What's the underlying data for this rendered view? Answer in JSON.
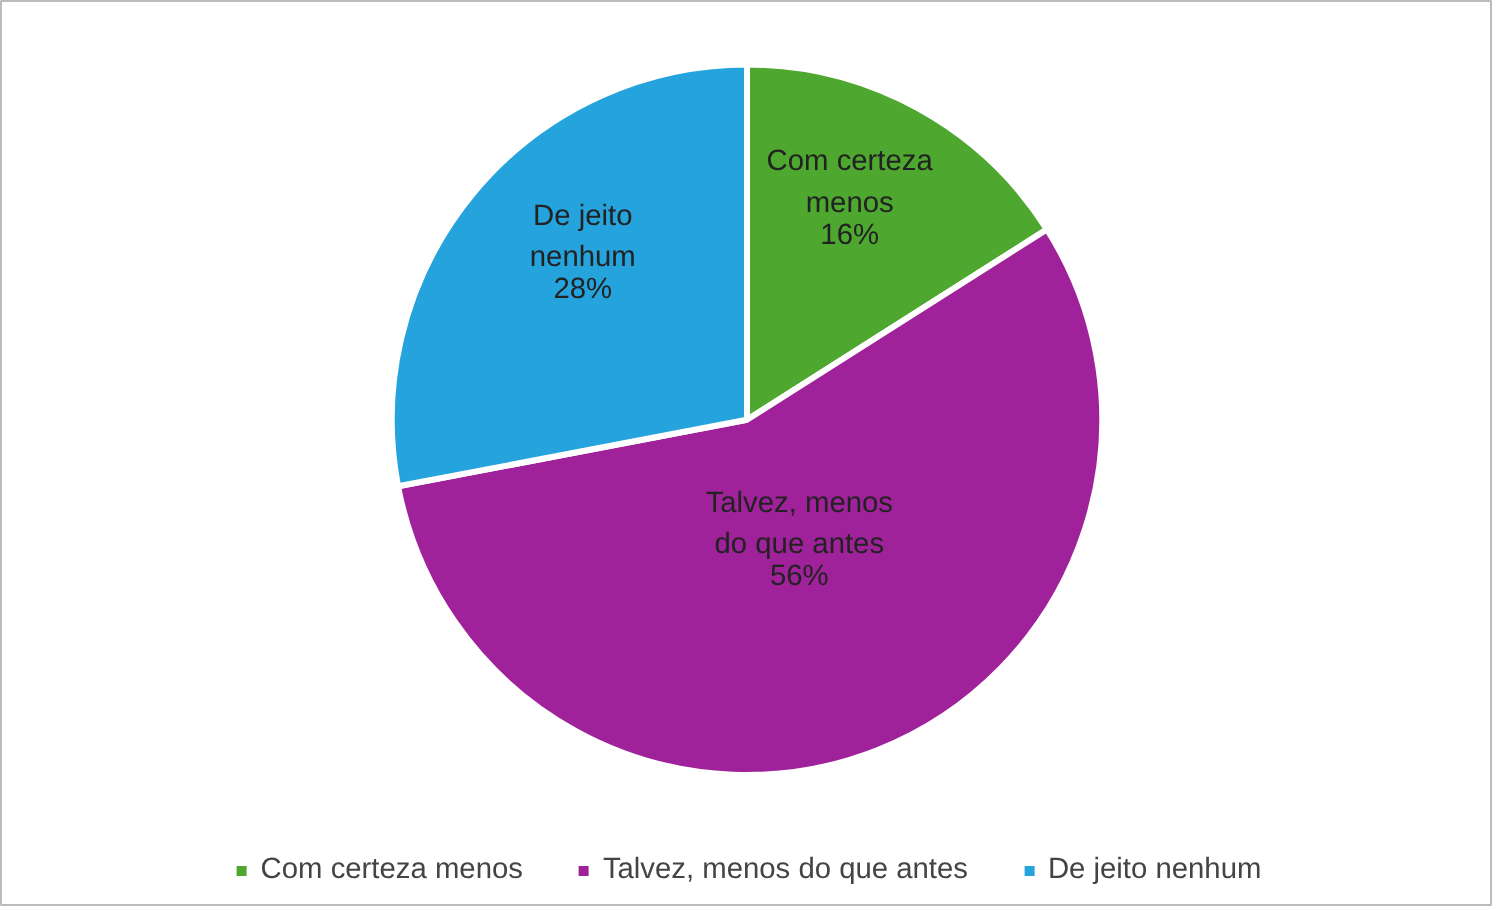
{
  "chart_data": {
    "type": "pie",
    "categories": [
      "Com certeza menos",
      "Talvez, menos do que antes",
      "De jeito nenhum"
    ],
    "values": [
      16,
      56,
      28
    ],
    "value_labels": [
      "16%",
      "56%",
      "28%"
    ],
    "colors": [
      "#4ea72e",
      "#a0229a",
      "#25a3dc"
    ],
    "legend": "bottom"
  }
}
